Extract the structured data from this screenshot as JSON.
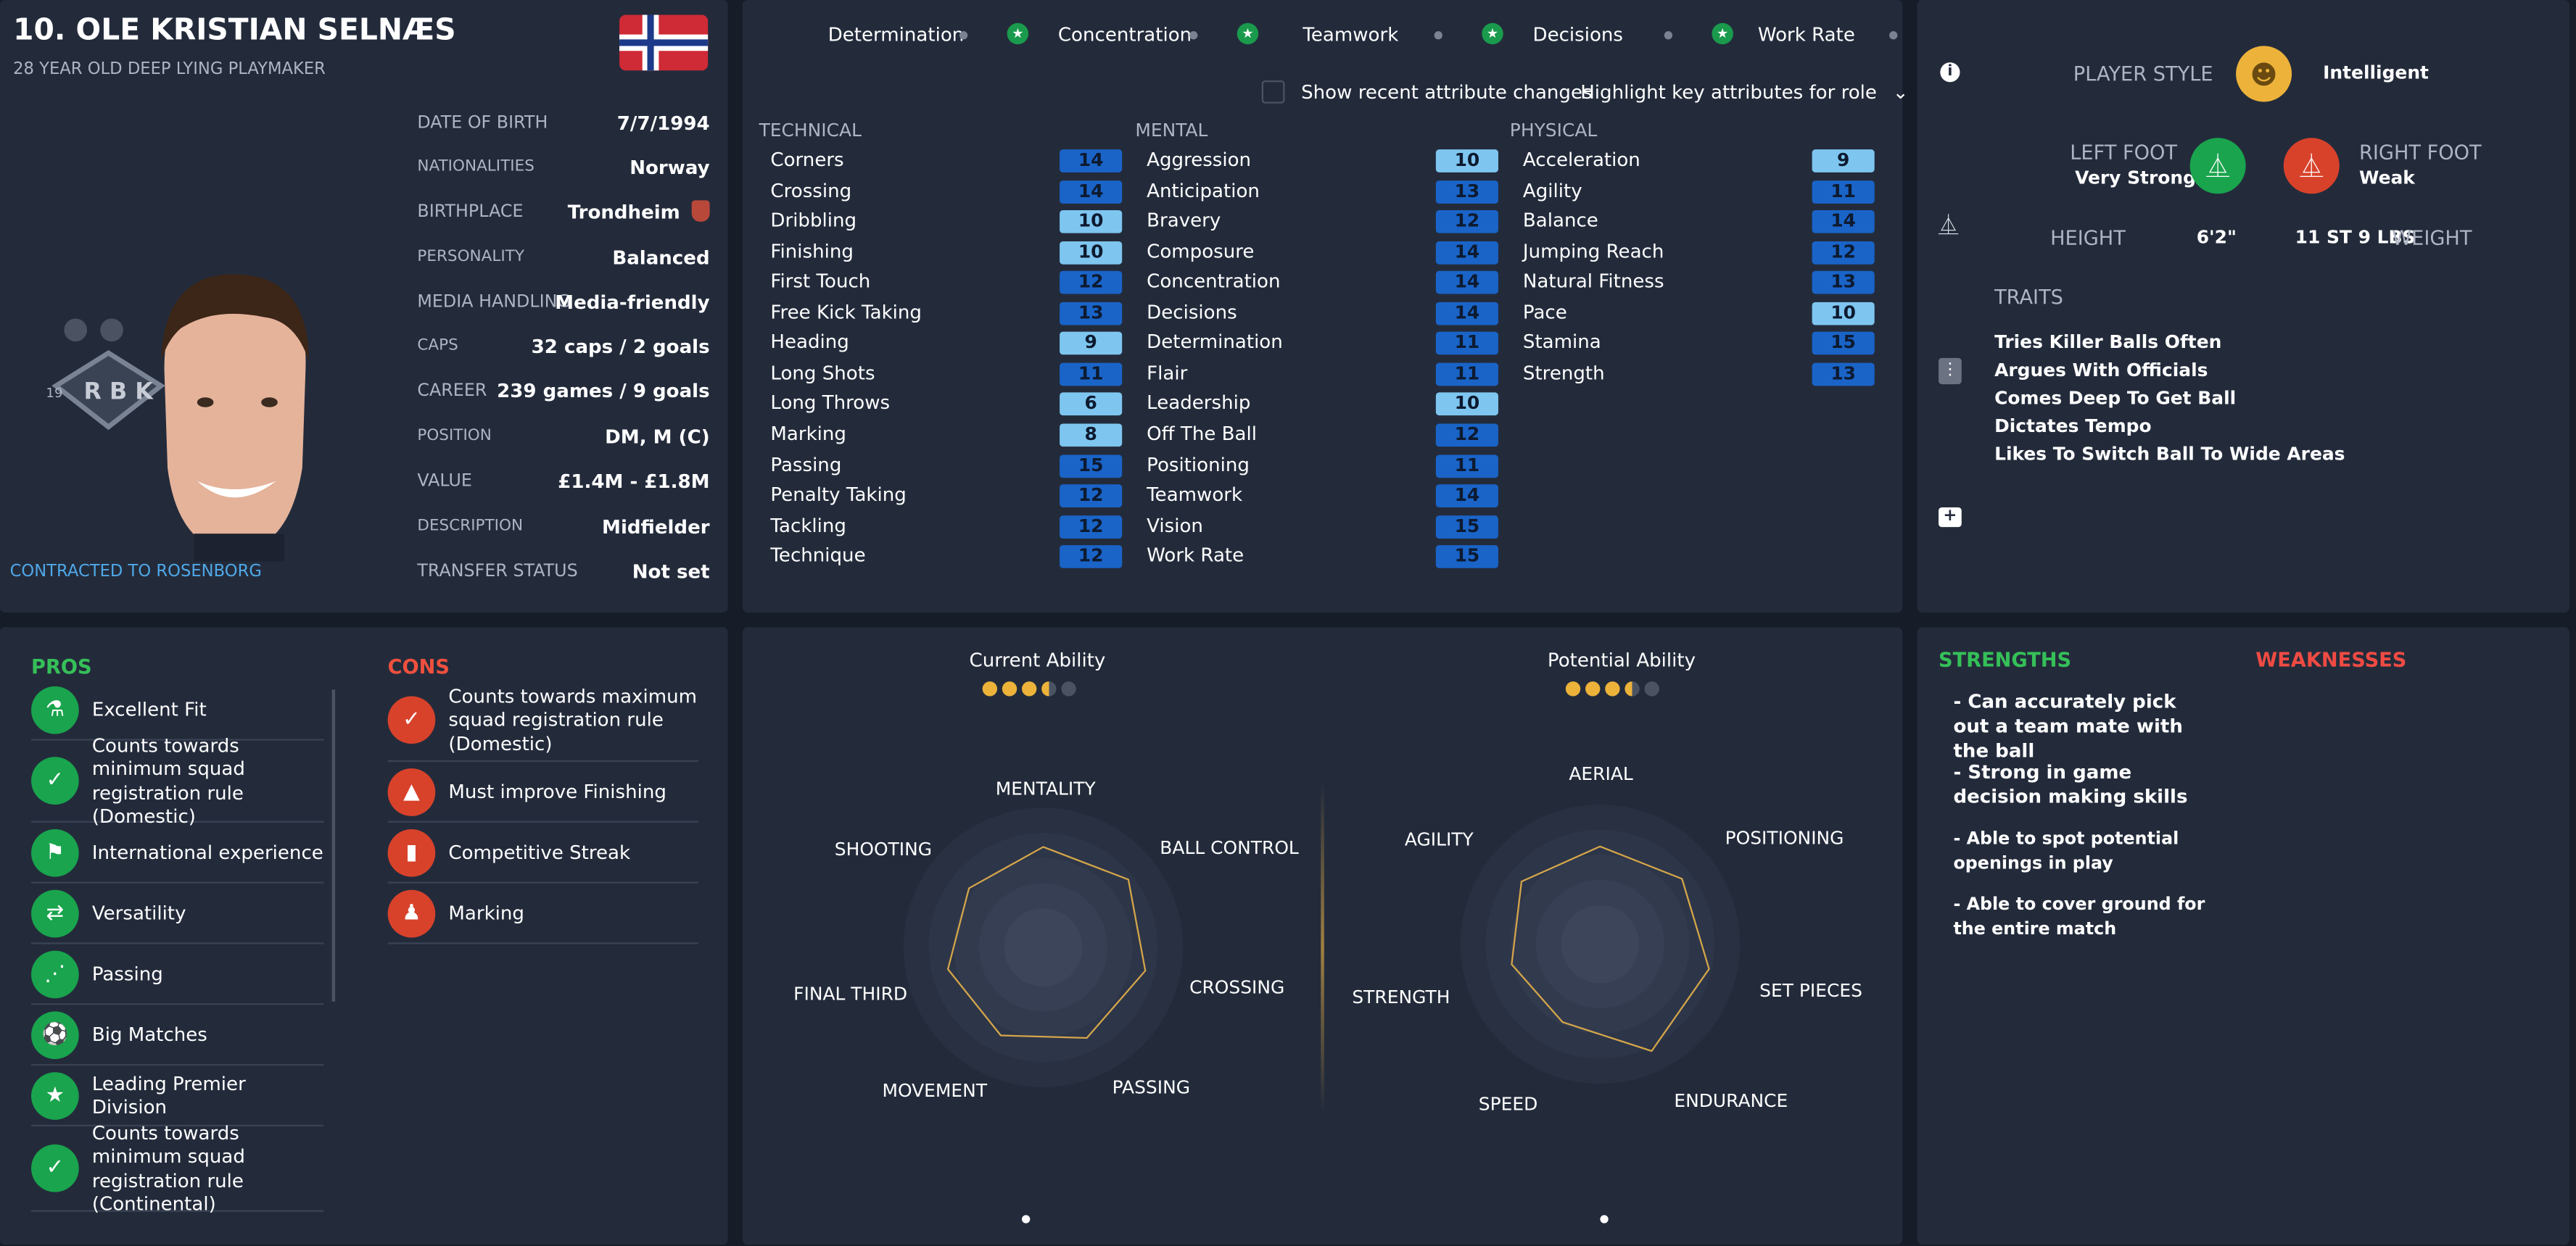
{
  "player": {
    "name": "10. OLE KRISTIAN SELNÆS",
    "subtitle": "28 YEAR OLD DEEP LYING PLAYMAKER",
    "contract": "CONTRACTED TO ROSENBORG",
    "club_badge": {
      "text": "R B K",
      "year": "19"
    }
  },
  "info": [
    {
      "label": "DATE OF BIRTH",
      "value": "7/7/1994"
    },
    {
      "label": "NATIONALITIES",
      "value": "Norway"
    },
    {
      "label": "BIRTHPLACE",
      "value": "Trondheim"
    },
    {
      "label": "PERSONALITY",
      "value": "Balanced"
    },
    {
      "label": "MEDIA HANDLING",
      "value": "Media-friendly"
    },
    {
      "label": "CAPS",
      "value": "32 caps / 2 goals"
    },
    {
      "label": "CAREER",
      "value": "239 games / 9 goals"
    },
    {
      "label": "POSITION",
      "value": "DM, M (C)"
    },
    {
      "label": "VALUE",
      "value": "£1.4M - £1.8M"
    },
    {
      "label": "DESCRIPTION",
      "value": "Midfielder"
    },
    {
      "label": "TRANSFER STATUS",
      "value": "Not set"
    }
  ],
  "key_attrs": [
    "Determination",
    "Concentration",
    "Teamwork",
    "Decisions",
    "Work Rate"
  ],
  "controls": {
    "show_changes": "Show recent attribute changes",
    "highlight": "Highlight key attributes for role"
  },
  "technical": {
    "title": "TECHNICAL",
    "rows": [
      {
        "name": "Corners",
        "value": "14",
        "shade": "dark"
      },
      {
        "name": "Crossing",
        "value": "14",
        "shade": "dark"
      },
      {
        "name": "Dribbling",
        "value": "10",
        "shade": "light"
      },
      {
        "name": "Finishing",
        "value": "10",
        "shade": "light"
      },
      {
        "name": "First Touch",
        "value": "12",
        "shade": "dark"
      },
      {
        "name": "Free Kick Taking",
        "value": "13",
        "shade": "dark"
      },
      {
        "name": "Heading",
        "value": "9",
        "shade": "light"
      },
      {
        "name": "Long Shots",
        "value": "11",
        "shade": "dark"
      },
      {
        "name": "Long Throws",
        "value": "6",
        "shade": "light"
      },
      {
        "name": "Marking",
        "value": "8",
        "shade": "light"
      },
      {
        "name": "Passing",
        "value": "15",
        "shade": "dark"
      },
      {
        "name": "Penalty Taking",
        "value": "12",
        "shade": "dark"
      },
      {
        "name": "Tackling",
        "value": "12",
        "shade": "dark"
      },
      {
        "name": "Technique",
        "value": "12",
        "shade": "dark"
      }
    ]
  },
  "mental": {
    "title": "MENTAL",
    "rows": [
      {
        "name": "Aggression",
        "value": "10",
        "shade": "light"
      },
      {
        "name": "Anticipation",
        "value": "13",
        "shade": "dark"
      },
      {
        "name": "Bravery",
        "value": "12",
        "shade": "dark"
      },
      {
        "name": "Composure",
        "value": "14",
        "shade": "dark"
      },
      {
        "name": "Concentration",
        "value": "14",
        "shade": "dark"
      },
      {
        "name": "Decisions",
        "value": "14",
        "shade": "dark"
      },
      {
        "name": "Determination",
        "value": "11",
        "shade": "dark"
      },
      {
        "name": "Flair",
        "value": "11",
        "shade": "dark"
      },
      {
        "name": "Leadership",
        "value": "10",
        "shade": "light"
      },
      {
        "name": "Off The Ball",
        "value": "12",
        "shade": "dark"
      },
      {
        "name": "Positioning",
        "value": "11",
        "shade": "dark"
      },
      {
        "name": "Teamwork",
        "value": "14",
        "shade": "dark"
      },
      {
        "name": "Vision",
        "value": "15",
        "shade": "dark"
      },
      {
        "name": "Work Rate",
        "value": "15",
        "shade": "dark"
      }
    ]
  },
  "physical": {
    "title": "PHYSICAL",
    "rows": [
      {
        "name": "Acceleration",
        "value": "9",
        "shade": "light"
      },
      {
        "name": "Agility",
        "value": "11",
        "shade": "dark"
      },
      {
        "name": "Balance",
        "value": "14",
        "shade": "dark"
      },
      {
        "name": "Jumping Reach",
        "value": "12",
        "shade": "dark"
      },
      {
        "name": "Natural Fitness",
        "value": "13",
        "shade": "dark"
      },
      {
        "name": "Pace",
        "value": "10",
        "shade": "light"
      },
      {
        "name": "Stamina",
        "value": "15",
        "shade": "dark"
      },
      {
        "name": "Strength",
        "value": "13",
        "shade": "dark"
      }
    ]
  },
  "profile": {
    "style_label": "PLAYER STYLE",
    "style_value": "Intelligent",
    "left_foot_label": "LEFT FOOT",
    "left_foot_value": "Very Strong",
    "right_foot_label": "RIGHT FOOT",
    "right_foot_value": "Weak",
    "height_label": "HEIGHT",
    "height_value": "6'2\"",
    "weight_value": "11 ST 9 LBS",
    "weight_label": "WEIGHT",
    "traits_title": "TRAITS",
    "traits": [
      "Tries Killer Balls Often",
      "Argues With Officials",
      "Comes Deep To Get Ball",
      "Dictates Tempo",
      "Likes To Switch Ball To Wide Areas"
    ]
  },
  "pros": {
    "title": "PROS",
    "items": [
      {
        "text": "Excellent Fit",
        "icon": "flask-icon",
        "glyph": "⚗"
      },
      {
        "text": "Counts towards minimum squad registration rule (Domestic)",
        "icon": "registration-icon",
        "glyph": "✓"
      },
      {
        "text": "International experience",
        "icon": "flag-icon",
        "glyph": "⚑"
      },
      {
        "text": "Versatility",
        "icon": "arrows-icon",
        "glyph": "⇄"
      },
      {
        "text": "Passing",
        "icon": "passing-icon",
        "glyph": "⋰"
      },
      {
        "text": "Big Matches",
        "icon": "ball-icon",
        "glyph": "⚽"
      },
      {
        "text": "Leading Premier Division",
        "icon": "star-icon",
        "glyph": "★"
      },
      {
        "text": "Counts towards minimum squad registration rule (Continental)",
        "icon": "registration-icon",
        "glyph": "✓"
      }
    ]
  },
  "cons": {
    "title": "CONS",
    "items": [
      {
        "text": "Counts towards maximum squad registration rule (Domestic)",
        "icon": "registration-icon",
        "glyph": "✓"
      },
      {
        "text": "Must improve Finishing",
        "icon": "cone-icon",
        "glyph": "▲"
      },
      {
        "text": "Competitive Streak",
        "icon": "card-icon",
        "glyph": "▮"
      },
      {
        "text": "Marking",
        "icon": "person-icon",
        "glyph": "♟"
      }
    ]
  },
  "ability": {
    "current_label": "Current Ability",
    "potential_label": "Potential Ability",
    "current_stars": 3.5,
    "potential_stars": 3.5
  },
  "radar_left": {
    "labels": [
      "MENTALITY",
      "BALL CONTROL",
      "CROSSING",
      "PASSING",
      "MOVEMENT",
      "FINAL THIRD",
      "SHOOTING"
    ],
    "values": [
      0.72,
      0.78,
      0.75,
      0.72,
      0.7,
      0.7,
      0.68
    ]
  },
  "radar_right": {
    "labels": [
      "AERIAL",
      "POSITIONING",
      "SET PIECES",
      "ENDURANCE",
      "SPEED",
      "STRENGTH",
      "AGILITY"
    ],
    "values": [
      0.7,
      0.75,
      0.8,
      0.85,
      0.62,
      0.65,
      0.72
    ]
  },
  "strengths": {
    "title": "STRENGTHS",
    "items": [
      "- Can accurately pick out a team mate with the ball",
      "- Strong in game decision making skills",
      "- Able to spot potential openings in play",
      "- Able to cover ground for the entire match"
    ]
  },
  "weaknesses": {
    "title": "WEAKNESSES"
  },
  "colors": {
    "bg": "#161c28",
    "panel": "#232b3b",
    "green": "#19a44d",
    "red": "#d8422b",
    "accent": "#ecb23a",
    "weak_red": "#ef4b43"
  }
}
